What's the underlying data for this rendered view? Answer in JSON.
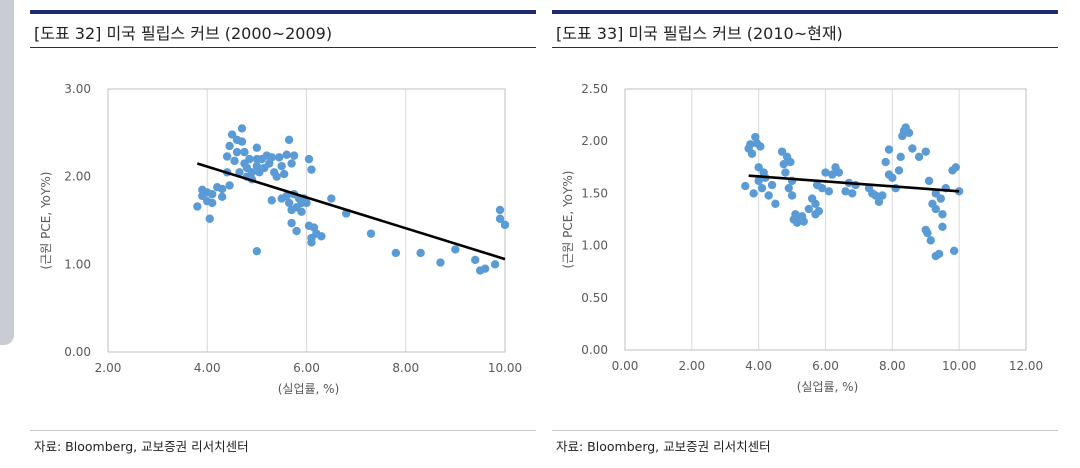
{
  "panels": [
    {
      "title": "[도표 32] 미국 필립스 커브 (2000~2009)",
      "source": "자료: Bloomberg, 교보증권 리서치센터"
    },
    {
      "title": "[도표 33] 미국 필립스 커브 (2010~현재)",
      "source": "자료: Bloomberg, 교보증권 리서치센터"
    }
  ],
  "chart_data": [
    {
      "type": "scatter",
      "xlabel": "(실업률, %)",
      "ylabel": "(근원 PCE, YoY%)",
      "xlim": [
        2,
        10
      ],
      "ylim": [
        0,
        3
      ],
      "xticks": [
        "2.00",
        "4.00",
        "6.00",
        "8.00",
        "10.00"
      ],
      "yticks": [
        "0.00",
        "1.00",
        "2.00",
        "3.00"
      ],
      "grid": "vertical",
      "marker_color": "#5b9bd5",
      "trend_color": "#000000",
      "trendline": [
        [
          3.8,
          2.15
        ],
        [
          10.0,
          1.06
        ]
      ],
      "points": [
        [
          3.8,
          1.66
        ],
        [
          3.9,
          1.85
        ],
        [
          3.9,
          1.78
        ],
        [
          4.0,
          1.82
        ],
        [
          4.0,
          1.72
        ],
        [
          4.05,
          1.52
        ],
        [
          4.1,
          1.7
        ],
        [
          4.1,
          1.8
        ],
        [
          4.2,
          1.88
        ],
        [
          4.3,
          1.86
        ],
        [
          4.3,
          1.77
        ],
        [
          4.4,
          2.05
        ],
        [
          4.4,
          2.23
        ],
        [
          4.45,
          2.35
        ],
        [
          4.45,
          1.9
        ],
        [
          4.5,
          2.48
        ],
        [
          4.55,
          2.18
        ],
        [
          4.6,
          2.42
        ],
        [
          4.6,
          2.28
        ],
        [
          4.65,
          2.05
        ],
        [
          4.7,
          2.4
        ],
        [
          4.7,
          2.55
        ],
        [
          4.75,
          2.15
        ],
        [
          4.75,
          2.28
        ],
        [
          4.8,
          2.1
        ],
        [
          4.8,
          2.0
        ],
        [
          4.85,
          2.2
        ],
        [
          4.9,
          2.05
        ],
        [
          4.9,
          1.97
        ],
        [
          5.0,
          2.33
        ],
        [
          5.0,
          2.2
        ],
        [
          5.0,
          2.12
        ],
        [
          5.05,
          2.05
        ],
        [
          5.1,
          2.2
        ],
        [
          5.15,
          2.1
        ],
        [
          5.2,
          2.24
        ],
        [
          5.25,
          2.15
        ],
        [
          5.3,
          2.22
        ],
        [
          5.35,
          2.05
        ],
        [
          5.4,
          2.0
        ],
        [
          5.45,
          2.22
        ],
        [
          5.5,
          2.12
        ],
        [
          5.55,
          2.03
        ],
        [
          5.6,
          2.25
        ],
        [
          5.65,
          2.42
        ],
        [
          5.7,
          2.15
        ],
        [
          5.75,
          2.24
        ],
        [
          5.5,
          1.75
        ],
        [
          5.6,
          1.78
        ],
        [
          5.65,
          1.7
        ],
        [
          5.7,
          1.62
        ],
        [
          5.7,
          1.47
        ],
        [
          5.75,
          1.8
        ],
        [
          5.8,
          1.65
        ],
        [
          5.8,
          1.38
        ],
        [
          5.85,
          1.75
        ],
        [
          5.9,
          1.6
        ],
        [
          5.9,
          1.7
        ],
        [
          5.95,
          1.75
        ],
        [
          6.0,
          1.7
        ],
        [
          6.05,
          1.44
        ],
        [
          6.1,
          1.3
        ],
        [
          6.1,
          1.25
        ],
        [
          6.15,
          1.42
        ],
        [
          6.2,
          1.35
        ],
        [
          6.3,
          1.32
        ],
        [
          5.0,
          1.15
        ],
        [
          5.3,
          1.73
        ],
        [
          6.05,
          2.2
        ],
        [
          6.1,
          2.08
        ],
        [
          6.5,
          1.75
        ],
        [
          6.8,
          1.58
        ],
        [
          7.3,
          1.35
        ],
        [
          7.8,
          1.13
        ],
        [
          8.3,
          1.13
        ],
        [
          8.7,
          1.02
        ],
        [
          9.0,
          1.17
        ],
        [
          9.4,
          1.05
        ],
        [
          9.5,
          0.93
        ],
        [
          9.6,
          0.95
        ],
        [
          9.8,
          1.0
        ],
        [
          9.9,
          1.62
        ],
        [
          9.9,
          1.52
        ],
        [
          10.0,
          1.45
        ]
      ]
    },
    {
      "type": "scatter",
      "xlabel": "(실업률, %)",
      "ylabel": "(근원 PCE, YoY%)",
      "xlim": [
        0,
        12
      ],
      "ylim": [
        0,
        2.5
      ],
      "xticks": [
        "0.00",
        "2.00",
        "4.00",
        "6.00",
        "8.00",
        "10.00",
        "12.00"
      ],
      "yticks": [
        "0.00",
        "0.50",
        "1.00",
        "1.50",
        "2.00",
        "2.50"
      ],
      "grid": "vertical",
      "marker_color": "#5b9bd5",
      "trend_color": "#000000",
      "trendline": [
        [
          3.7,
          1.67
        ],
        [
          10.0,
          1.52
        ]
      ],
      "points": [
        [
          3.6,
          1.57
        ],
        [
          3.7,
          1.93
        ],
        [
          3.75,
          1.97
        ],
        [
          3.8,
          1.88
        ],
        [
          3.85,
          1.5
        ],
        [
          3.9,
          2.04
        ],
        [
          3.95,
          1.98
        ],
        [
          4.0,
          1.62
        ],
        [
          4.0,
          1.75
        ],
        [
          4.05,
          1.95
        ],
        [
          4.1,
          1.55
        ],
        [
          4.15,
          1.7
        ],
        [
          4.2,
          1.65
        ],
        [
          4.3,
          1.48
        ],
        [
          4.4,
          1.58
        ],
        [
          4.5,
          1.4
        ],
        [
          4.7,
          1.9
        ],
        [
          4.75,
          1.78
        ],
        [
          4.8,
          1.7
        ],
        [
          4.85,
          1.85
        ],
        [
          4.9,
          1.55
        ],
        [
          4.95,
          1.8
        ],
        [
          5.0,
          1.48
        ],
        [
          5.0,
          1.62
        ],
        [
          5.05,
          1.25
        ],
        [
          5.1,
          1.3
        ],
        [
          5.15,
          1.22
        ],
        [
          5.2,
          1.27
        ],
        [
          5.3,
          1.28
        ],
        [
          5.35,
          1.23
        ],
        [
          5.5,
          1.35
        ],
        [
          5.6,
          1.45
        ],
        [
          5.7,
          1.4
        ],
        [
          5.7,
          1.3
        ],
        [
          5.75,
          1.58
        ],
        [
          5.8,
          1.33
        ],
        [
          5.9,
          1.55
        ],
        [
          6.0,
          1.7
        ],
        [
          6.1,
          1.52
        ],
        [
          6.2,
          1.68
        ],
        [
          6.3,
          1.75
        ],
        [
          6.4,
          1.7
        ],
        [
          6.6,
          1.52
        ],
        [
          6.7,
          1.6
        ],
        [
          6.8,
          1.5
        ],
        [
          6.9,
          1.58
        ],
        [
          7.3,
          1.55
        ],
        [
          7.4,
          1.5
        ],
        [
          7.5,
          1.48
        ],
        [
          7.6,
          1.42
        ],
        [
          7.7,
          1.48
        ],
        [
          7.8,
          1.8
        ],
        [
          7.9,
          1.68
        ],
        [
          7.9,
          1.92
        ],
        [
          8.0,
          1.65
        ],
        [
          8.1,
          1.55
        ],
        [
          8.2,
          1.72
        ],
        [
          8.25,
          1.85
        ],
        [
          8.3,
          2.05
        ],
        [
          8.35,
          2.1
        ],
        [
          8.4,
          2.13
        ],
        [
          8.5,
          2.08
        ],
        [
          8.6,
          1.93
        ],
        [
          8.8,
          1.85
        ],
        [
          9.0,
          1.9
        ],
        [
          9.0,
          1.15
        ],
        [
          9.05,
          1.12
        ],
        [
          9.1,
          1.62
        ],
        [
          9.15,
          1.05
        ],
        [
          9.2,
          1.4
        ],
        [
          9.3,
          1.5
        ],
        [
          9.3,
          0.9
        ],
        [
          9.4,
          0.92
        ],
        [
          9.45,
          1.45
        ],
        [
          9.5,
          1.3
        ],
        [
          9.5,
          1.18
        ],
        [
          9.6,
          1.55
        ],
        [
          9.8,
          1.72
        ],
        [
          9.85,
          0.95
        ],
        [
          9.9,
          1.75
        ],
        [
          10.0,
          1.52
        ],
        [
          9.3,
          1.35
        ]
      ]
    }
  ]
}
